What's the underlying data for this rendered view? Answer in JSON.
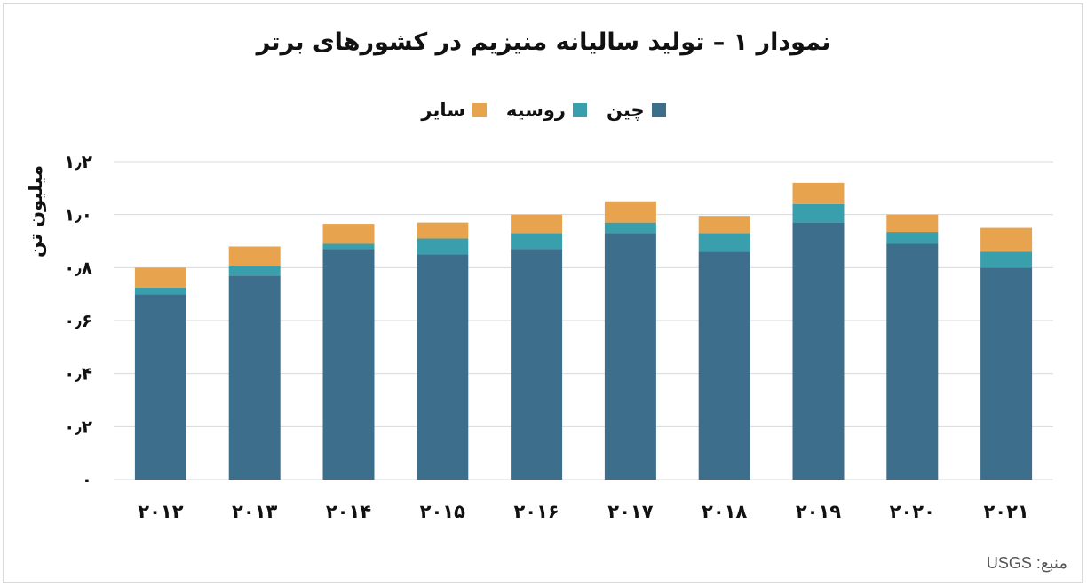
{
  "title": "نمودار ۱ – تولید سالیانه منیزیم در کشورهای برتر",
  "source": "منبع: USGS",
  "colors": {
    "china": "#3d6e8b",
    "russia": "#3a9fad",
    "other": "#e8a34f",
    "grid": "#d9d9d9"
  },
  "chart_data": {
    "type": "bar",
    "stacked": true,
    "title": "نمودار ۱ – تولید سالیانه منیزیم در کشورهای برتر",
    "ylabel": "میلیون تن",
    "xlabel": "",
    "ylim": [
      0,
      1.2
    ],
    "grid": true,
    "legend_position": "top",
    "categories": [
      "۲۰۱۲",
      "۲۰۱۳",
      "۲۰۱۴",
      "۲۰۱۵",
      "۲۰۱۶",
      "۲۰۱۷",
      "۲۰۱۸",
      "۲۰۱۹",
      "۲۰۲۰",
      "۲۰۲۱"
    ],
    "y_tick_labels": [
      "۰",
      "۰٫۲",
      "۰٫۴",
      "۰٫۶",
      "۰٫۸",
      "۱٫۰",
      "۱٫۲"
    ],
    "y_tick_values": [
      0,
      0.2,
      0.4,
      0.6,
      0.8,
      1.0,
      1.2
    ],
    "series": [
      {
        "name": "چین",
        "color": "#3d6e8b",
        "values": [
          0.7,
          0.77,
          0.87,
          0.85,
          0.87,
          0.93,
          0.86,
          0.97,
          0.89,
          0.8
        ]
      },
      {
        "name": "روسیه",
        "color": "#3a9fad",
        "values": [
          0.025,
          0.035,
          0.02,
          0.06,
          0.06,
          0.04,
          0.07,
          0.07,
          0.045,
          0.06
        ]
      },
      {
        "name": "سایر",
        "color": "#e8a34f",
        "values": [
          0.075,
          0.075,
          0.075,
          0.06,
          0.07,
          0.08,
          0.065,
          0.08,
          0.065,
          0.09
        ]
      }
    ]
  }
}
